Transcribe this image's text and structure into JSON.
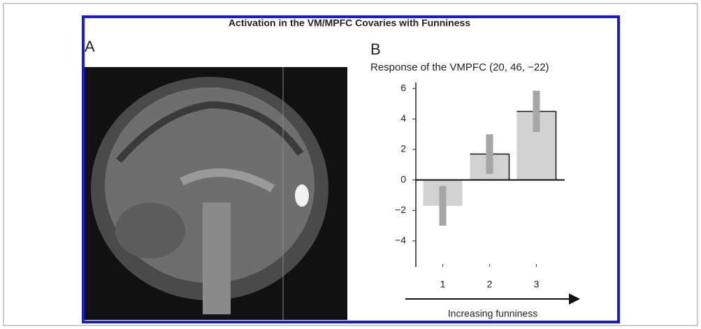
{
  "title": "Activation in the VM/MPFC Covaries with Funniness",
  "panel_a": "A",
  "panel_b": "B",
  "chart_data": {
    "type": "bar",
    "subtitle": "Response of the VMPFC (20, 46, −22)",
    "xlabel": "Increasing funniness",
    "categories": [
      "1",
      "2",
      "3"
    ],
    "values": [
      -1.7,
      1.7,
      4.5
    ],
    "errors": [
      1.3,
      1.3,
      1.35
    ],
    "color": "#d2d2d2",
    "error_color": "#a6a6a6",
    "ylim": [
      -5.7,
      6.4
    ],
    "yticks": [
      {
        "value": -4,
        "label": "−4"
      },
      {
        "value": -2,
        "label": "−2"
      },
      0,
      2,
      4,
      6
    ]
  }
}
